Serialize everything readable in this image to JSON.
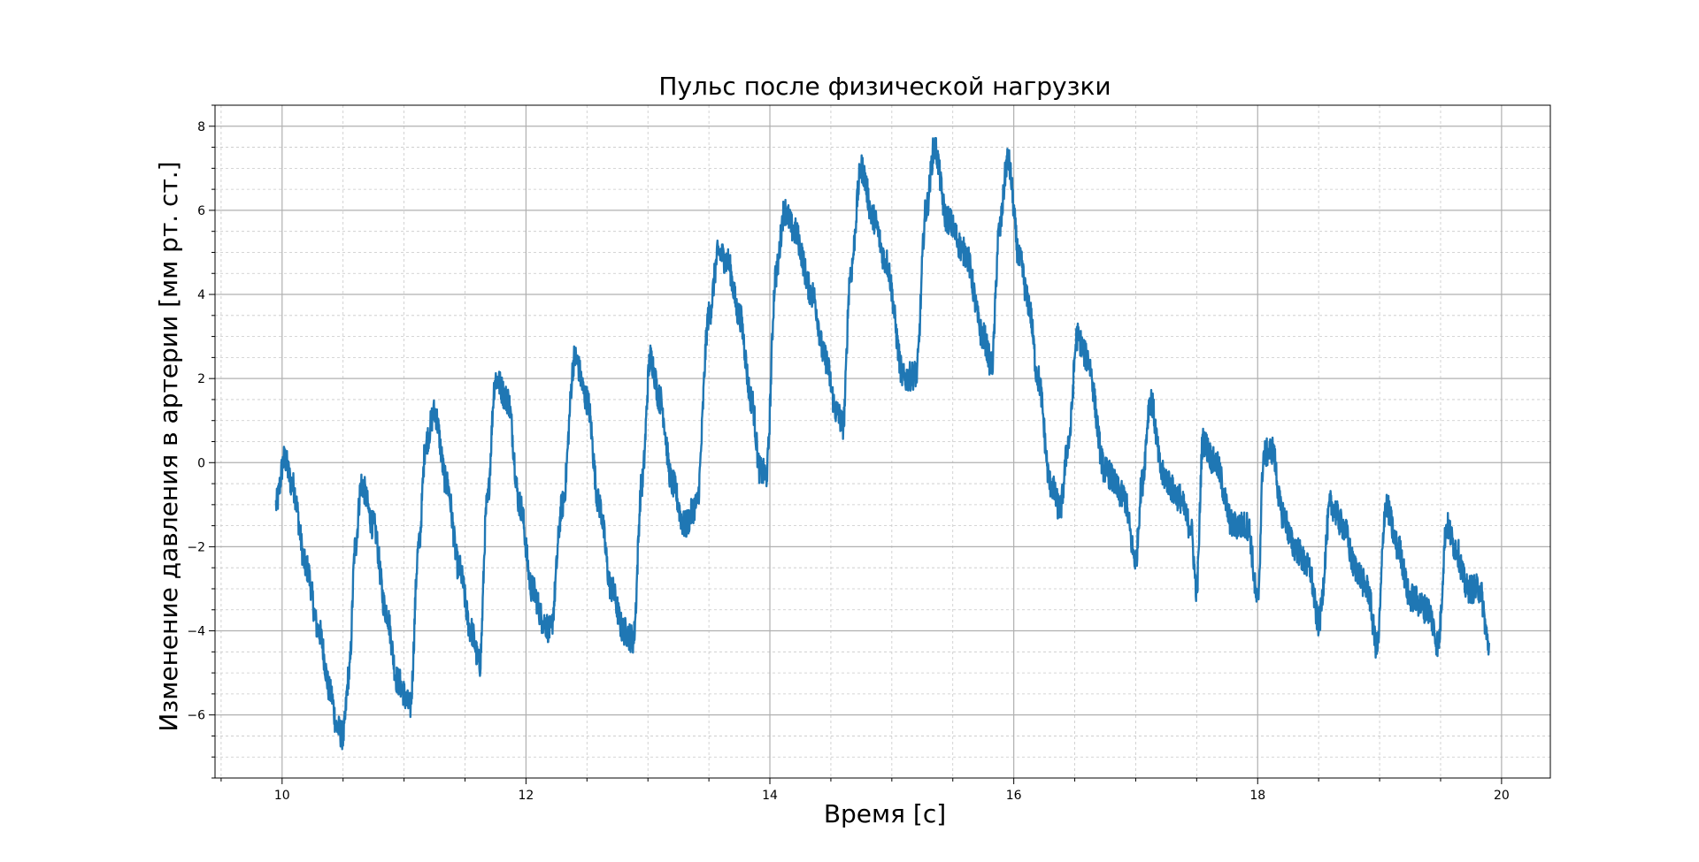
{
  "chart_data": {
    "type": "line",
    "title": "Пульс после физической нагрузки",
    "xlabel": "Время [с]",
    "ylabel": "Изменение давления в артерии [мм рт. ст.]",
    "xlim": [
      9.45,
      20.4
    ],
    "ylim": [
      -7.5,
      8.5
    ],
    "x_ticks": [
      10,
      12,
      14,
      16,
      18,
      20
    ],
    "x_tick_labels": [
      "10",
      "12",
      "14",
      "16",
      "18",
      "20"
    ],
    "y_ticks": [
      -6,
      -4,
      -2,
      0,
      2,
      4,
      6,
      8
    ],
    "y_tick_labels": [
      "−6",
      "−4",
      "−2",
      "0",
      "2",
      "4",
      "6",
      "8"
    ],
    "grid": {
      "major": true,
      "minor": true
    },
    "series": [
      {
        "color": "#1f77b4",
        "noise_amplitude": 0.35,
        "x": [
          9.95,
          10.02,
          10.08,
          10.2,
          10.3,
          10.4,
          10.45,
          10.5,
          10.55,
          10.6,
          10.65,
          10.75,
          10.85,
          10.95,
          11.05,
          11.12,
          11.18,
          11.25,
          11.35,
          11.45,
          11.55,
          11.62,
          11.68,
          11.75,
          11.85,
          11.95,
          12.05,
          12.15,
          12.2,
          12.3,
          12.4,
          12.5,
          12.6,
          12.7,
          12.8,
          12.88,
          12.95,
          13.02,
          13.1,
          13.2,
          13.3,
          13.4,
          13.5,
          13.58,
          13.65,
          13.75,
          13.85,
          13.92,
          13.97,
          14.05,
          14.12,
          14.2,
          14.35,
          14.45,
          14.55,
          14.6,
          14.66,
          14.75,
          14.85,
          14.95,
          15.1,
          15.2,
          15.28,
          15.35,
          15.45,
          15.6,
          15.75,
          15.82,
          15.88,
          15.95,
          16.05,
          16.12,
          16.2,
          16.3,
          16.38,
          16.45,
          16.52,
          16.6,
          16.75,
          16.9,
          17.0,
          17.05,
          17.12,
          17.22,
          17.35,
          17.45,
          17.5,
          17.55,
          17.65,
          17.8,
          17.92,
          18.0,
          18.05,
          18.12,
          18.2,
          18.3,
          18.42,
          18.5,
          18.6,
          18.7,
          18.8,
          18.9,
          18.98,
          19.05,
          19.15,
          19.25,
          19.4,
          19.48,
          19.55,
          19.62,
          19.72,
          19.82,
          19.9
        ],
        "y": [
          -1.0,
          0.1,
          -0.5,
          -2.5,
          -4.0,
          -5.5,
          -6.3,
          -6.5,
          -5.0,
          -2.0,
          -0.5,
          -1.5,
          -3.5,
          -5.2,
          -5.8,
          -2.0,
          0.5,
          1.2,
          -0.5,
          -2.5,
          -4.0,
          -4.8,
          -1.0,
          2.0,
          1.5,
          -1.0,
          -3.0,
          -3.8,
          -4.0,
          -1.0,
          2.5,
          1.5,
          -1.0,
          -3.0,
          -4.0,
          -4.2,
          -0.5,
          2.5,
          1.5,
          -0.5,
          -1.5,
          -1.0,
          3.5,
          5.0,
          4.8,
          3.5,
          1.5,
          -0.2,
          -0.3,
          4.5,
          6.0,
          5.5,
          4.0,
          2.5,
          1.2,
          0.9,
          4.5,
          7.0,
          5.8,
          4.8,
          2.0,
          2.1,
          6.0,
          7.5,
          5.8,
          5.0,
          3.0,
          2.3,
          5.5,
          7.2,
          4.8,
          3.8,
          2.0,
          -0.5,
          -1.1,
          0.5,
          3.0,
          2.5,
          -0.2,
          -0.8,
          -2.3,
          -0.5,
          1.5,
          -0.3,
          -0.8,
          -1.5,
          -3.0,
          0.5,
          0.0,
          -1.5,
          -1.5,
          -3.3,
          0.2,
          0.3,
          -1.2,
          -2.0,
          -2.5,
          -3.8,
          -1.0,
          -1.5,
          -2.5,
          -3.0,
          -4.4,
          -1.0,
          -2.0,
          -3.2,
          -3.5,
          -4.3,
          -1.5,
          -2.0,
          -3.0,
          -3.0,
          -4.4
        ]
      }
    ]
  }
}
